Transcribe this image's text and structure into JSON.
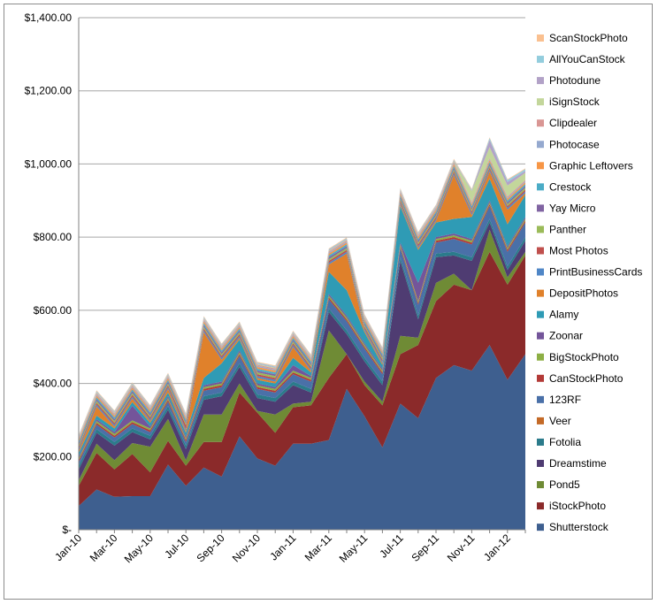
{
  "chart_data": {
    "type": "area",
    "stacked": true,
    "grid": "horizontal",
    "legend_position": "right",
    "y_ticks": [
      "$-",
      "$200.00",
      "$400.00",
      "$600.00",
      "$800.00",
      "$1,000.00",
      "$1,200.00",
      "$1,400.00"
    ],
    "ylim": [
      0,
      1400
    ],
    "x": [
      "Jan-10",
      "Feb-10",
      "Mar-10",
      "Apr-10",
      "May-10",
      "Jun-10",
      "Jul-10",
      "Aug-10",
      "Sep-10",
      "Oct-10",
      "Nov-10",
      "Dec-10",
      "Jan-11",
      "Feb-11",
      "Mar-11",
      "Apr-11",
      "May-11",
      "Jun-11",
      "Jul-11",
      "Aug-11",
      "Sep-11",
      "Oct-11",
      "Nov-11",
      "Dec-11",
      "Jan-12",
      "Feb-12"
    ],
    "x_labels": [
      "Jan-10",
      "Mar-10",
      "May-10",
      "Jul-10",
      "Sep-10",
      "Nov-10",
      "Jan-11",
      "Mar-11",
      "May-11",
      "Jul-11",
      "Sep-11",
      "Nov-11",
      "Jan-12"
    ],
    "series": [
      {
        "name": "Shutterstock",
        "color": "#3E5F8F",
        "values": [
          65,
          110,
          90,
          92,
          92,
          178,
          120,
          170,
          145,
          255,
          195,
          175,
          235,
          235,
          245,
          385,
          310,
          225,
          345,
          305,
          415,
          450,
          435,
          505,
          410,
          480
        ]
      },
      {
        "name": "iStockPhoto",
        "color": "#8B2A2A",
        "values": [
          55,
          100,
          75,
          115,
          65,
          65,
          55,
          70,
          95,
          120,
          125,
          90,
          100,
          105,
          170,
          95,
          85,
          115,
          135,
          200,
          210,
          220,
          220,
          255,
          260,
          270
        ]
      },
      {
        "name": "Pond5",
        "color": "#6F8B35",
        "values": [
          15,
          25,
          25,
          30,
          70,
          60,
          15,
          75,
          75,
          25,
          5,
          50,
          10,
          10,
          130,
          0,
          10,
          10,
          50,
          20,
          50,
          30,
          0,
          60,
          20,
          10
        ]
      },
      {
        "name": "Dreamstime",
        "color": "#4F3C72",
        "values": [
          30,
          30,
          40,
          30,
          20,
          25,
          30,
          40,
          50,
          45,
          35,
          35,
          50,
          25,
          50,
          55,
          55,
          45,
          205,
          50,
          70,
          50,
          80,
          20,
          20,
          30
        ]
      },
      {
        "name": "Fotolia",
        "color": "#2B7B8B",
        "values": [
          10,
          10,
          10,
          10,
          10,
          10,
          10,
          10,
          10,
          10,
          10,
          10,
          10,
          10,
          10,
          10,
          10,
          10,
          10,
          10,
          10,
          10,
          10,
          10,
          10,
          10
        ]
      },
      {
        "name": "Veer",
        "color": "#C46A27",
        "values": [
          0,
          0,
          0,
          0,
          0,
          0,
          0,
          0,
          0,
          0,
          0,
          0,
          0,
          0,
          0,
          0,
          0,
          0,
          0,
          0,
          0,
          0,
          0,
          0,
          0,
          0
        ]
      },
      {
        "name": "123RF",
        "color": "#4A70A8",
        "values": [
          10,
          12,
          12,
          12,
          10,
          12,
          10,
          15,
          15,
          20,
          15,
          15,
          20,
          20,
          25,
          25,
          25,
          20,
          25,
          30,
          30,
          35,
          35,
          35,
          40,
          40
        ]
      },
      {
        "name": "CanStockPhoto",
        "color": "#B33A37",
        "values": [
          5,
          5,
          5,
          5,
          5,
          5,
          5,
          5,
          5,
          5,
          5,
          5,
          5,
          5,
          5,
          5,
          5,
          5,
          5,
          5,
          5,
          5,
          5,
          5,
          5,
          5
        ]
      },
      {
        "name": "BigStockPhoto",
        "color": "#8DAF45",
        "values": [
          5,
          5,
          5,
          5,
          5,
          5,
          5,
          5,
          5,
          5,
          5,
          5,
          5,
          5,
          5,
          5,
          5,
          5,
          5,
          5,
          5,
          5,
          5,
          5,
          5,
          5
        ]
      },
      {
        "name": "Zoonar",
        "color": "#74559A",
        "values": [
          5,
          5,
          5,
          40,
          5,
          5,
          5,
          5,
          5,
          5,
          5,
          5,
          15,
          5,
          5,
          5,
          5,
          5,
          5,
          50,
          5,
          5,
          5,
          5,
          5,
          5
        ]
      },
      {
        "name": "Alamy",
        "color": "#2F9BB5",
        "values": [
          10,
          10,
          10,
          10,
          10,
          10,
          10,
          20,
          50,
          30,
          10,
          10,
          20,
          10,
          60,
          70,
          30,
          10,
          100,
          90,
          40,
          40,
          60,
          60,
          60,
          60
        ]
      },
      {
        "name": "DepositPhotos",
        "color": "#E0812B",
        "values": [
          5,
          25,
          5,
          10,
          5,
          10,
          5,
          125,
          10,
          5,
          5,
          5,
          30,
          5,
          20,
          100,
          5,
          5,
          5,
          5,
          5,
          120,
          5,
          20,
          40,
          5
        ]
      },
      {
        "name": "PrintBusinessCards",
        "color": "#4F86C6",
        "values": [
          5,
          5,
          5,
          5,
          5,
          5,
          5,
          5,
          5,
          5,
          5,
          5,
          5,
          5,
          5,
          5,
          5,
          5,
          5,
          5,
          5,
          5,
          5,
          5,
          5,
          5
        ]
      },
      {
        "name": "Most Photos",
        "color": "#C0504D",
        "values": [
          5,
          5,
          5,
          5,
          5,
          5,
          10,
          5,
          5,
          5,
          5,
          5,
          5,
          5,
          5,
          5,
          5,
          5,
          5,
          5,
          5,
          5,
          5,
          5,
          5,
          5
        ]
      },
      {
        "name": "Panther",
        "color": "#9BBB59",
        "values": [
          5,
          5,
          5,
          5,
          5,
          5,
          5,
          5,
          5,
          5,
          5,
          5,
          5,
          5,
          5,
          5,
          5,
          5,
          5,
          5,
          5,
          5,
          5,
          5,
          5,
          5
        ]
      },
      {
        "name": "Yay Micro",
        "color": "#8064A2",
        "values": [
          5,
          5,
          5,
          5,
          5,
          5,
          5,
          5,
          5,
          5,
          5,
          5,
          5,
          5,
          5,
          5,
          5,
          5,
          5,
          5,
          5,
          5,
          5,
          5,
          5,
          5
        ]
      },
      {
        "name": "Crestock",
        "color": "#4BACC6",
        "values": [
          5,
          5,
          5,
          5,
          5,
          5,
          5,
          5,
          5,
          5,
          5,
          5,
          5,
          5,
          5,
          5,
          5,
          5,
          5,
          5,
          5,
          5,
          5,
          5,
          5,
          5
        ]
      },
      {
        "name": "Graphic Leftovers",
        "color": "#F79646",
        "values": [
          5,
          5,
          5,
          5,
          5,
          5,
          5,
          5,
          5,
          5,
          5,
          5,
          5,
          5,
          5,
          5,
          5,
          5,
          5,
          5,
          5,
          5,
          5,
          5,
          5,
          5
        ]
      },
      {
        "name": "Photocase",
        "color": "#95A9CF",
        "values": [
          3,
          3,
          3,
          3,
          3,
          3,
          3,
          3,
          3,
          3,
          3,
          3,
          3,
          3,
          3,
          3,
          3,
          3,
          3,
          3,
          3,
          3,
          3,
          3,
          3,
          3
        ]
      },
      {
        "name": "Clipdealer",
        "color": "#D99694",
        "values": [
          3,
          3,
          3,
          3,
          3,
          3,
          3,
          3,
          3,
          3,
          3,
          3,
          3,
          3,
          3,
          3,
          3,
          3,
          3,
          3,
          3,
          3,
          3,
          3,
          3,
          3
        ]
      },
      {
        "name": "iSignStock",
        "color": "#C3D69B",
        "values": [
          2,
          2,
          2,
          2,
          2,
          2,
          2,
          2,
          2,
          2,
          2,
          2,
          2,
          2,
          2,
          2,
          2,
          2,
          2,
          2,
          2,
          2,
          30,
          30,
          30,
          20
        ]
      },
      {
        "name": "Photodune",
        "color": "#B2A2C7",
        "values": [
          2,
          2,
          2,
          2,
          2,
          2,
          2,
          2,
          2,
          2,
          2,
          2,
          2,
          2,
          2,
          2,
          2,
          2,
          2,
          2,
          2,
          2,
          2,
          20,
          10,
          5
        ]
      },
      {
        "name": "AllYouCanStock",
        "color": "#93CDDD",
        "values": [
          2,
          2,
          2,
          2,
          2,
          2,
          2,
          2,
          2,
          2,
          2,
          2,
          2,
          2,
          2,
          2,
          2,
          2,
          2,
          2,
          2,
          2,
          2,
          5,
          5,
          5
        ]
      },
      {
        "name": "ScanStockPhoto",
        "color": "#FAC090",
        "values": [
          2,
          2,
          2,
          2,
          2,
          2,
          2,
          2,
          2,
          2,
          2,
          2,
          2,
          2,
          2,
          2,
          2,
          2,
          2,
          2,
          2,
          2,
          2,
          2,
          2,
          2
        ]
      }
    ]
  }
}
